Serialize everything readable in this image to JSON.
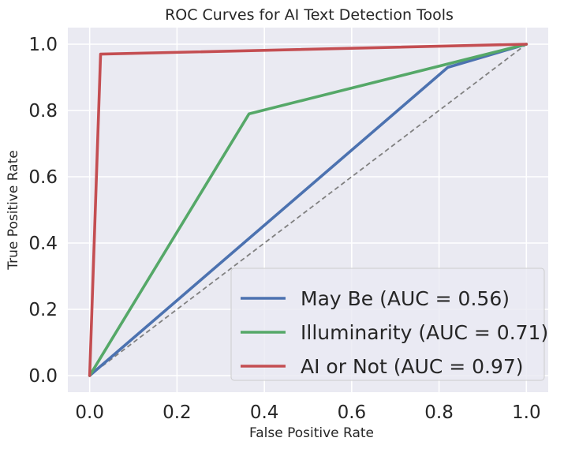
{
  "chart_data": {
    "type": "line",
    "title": "ROC Curves for AI Text Detection Tools",
    "xlabel": "False Positive Rate",
    "ylabel": "True Positive Rate",
    "xlim": [
      -0.05,
      1.05
    ],
    "ylim": [
      -0.05,
      1.05
    ],
    "xticks": [
      "0.0",
      "0.2",
      "0.4",
      "0.6",
      "0.8",
      "1.0"
    ],
    "yticks": [
      "0.0",
      "0.2",
      "0.4",
      "0.6",
      "0.8",
      "1.0"
    ],
    "grid": true,
    "legend_position": "lower-right",
    "series": [
      {
        "name": "May Be (AUC = 0.56)",
        "color": "#4c72b0",
        "x": [
          0.0,
          0.82,
          1.0
        ],
        "y": [
          0.0,
          0.93,
          1.0
        ]
      },
      {
        "name": "Illuminarity (AUC = 0.71)",
        "color": "#55a868",
        "x": [
          0.0,
          0.365,
          1.0
        ],
        "y": [
          0.0,
          0.79,
          1.0
        ]
      },
      {
        "name": "AI or Not (AUC = 0.97)",
        "color": "#c44e52",
        "x": [
          0.0,
          0.025,
          1.0
        ],
        "y": [
          0.0,
          0.97,
          1.0
        ]
      }
    ],
    "reference_line": {
      "x": [
        0.0,
        1.0
      ],
      "y": [
        0.0,
        1.0
      ],
      "color": "#808080",
      "style": "dashed"
    }
  }
}
